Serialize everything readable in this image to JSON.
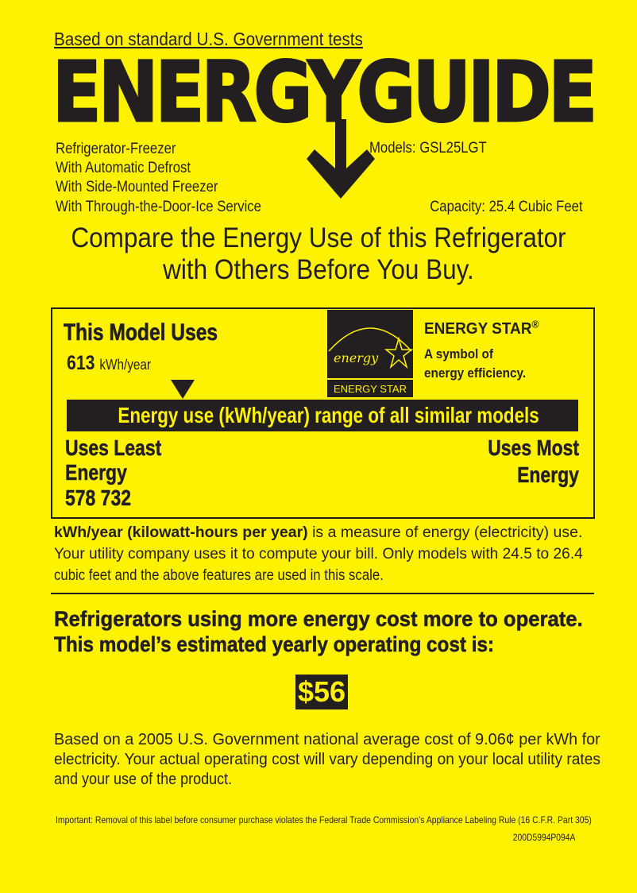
{
  "header": {
    "tests": "Based on standard U.S. Government tests",
    "logo": "ENERGYGUIDE"
  },
  "product": {
    "features": [
      "Refrigerator-Freezer",
      "With Automatic Defrost",
      "With Side-Mounted Freezer",
      "With Through-the-Door-Ice Service"
    ],
    "models": "Models:  GSL25LGT",
    "capacity": "Capacity: 25.4 Cubic Feet"
  },
  "compare": {
    "line1": "Compare the Energy Use of this Refrigerator",
    "line2": "with Others Before You Buy."
  },
  "usage": {
    "title": "This Model Uses",
    "value": "613",
    "unit": "kWh/year",
    "range_label": "Energy use (kWh/year) range of all similar models",
    "least_line1": "Uses Least",
    "least_line2": "Energy",
    "range_values": "578 732",
    "most_line1": "Uses Most",
    "most_line2": "Energy",
    "range_min": 578,
    "range_max": 732,
    "model_value": 613
  },
  "energy_star": {
    "logo_script": "energy",
    "logo_text": "ENERGY STAR",
    "title": "ENERGY STAR",
    "reg": "®",
    "sub1": "A symbol of",
    "sub2": "energy efficiency."
  },
  "explanation": {
    "bold": "kWh/year (kilowatt-hours per year)",
    "line1_rest": " is a measure of energy (electricity) use.",
    "line2": "Your utility company uses it to compute your bill. Only models with 24.5 to 26.4",
    "line3": "cubic feet and the above features are used in this scale."
  },
  "cost": {
    "heading1": "Refrigerators using more energy cost more to operate.",
    "heading2": "This model’s estimated yearly operating cost is:",
    "value": "$56",
    "note1": "Based on a 2005 U.S. Government national average cost of 9.06¢ per kWh for",
    "note2": "electricity. Your actual operating cost will vary depending on your local utility rates",
    "note3": "and your use of the product."
  },
  "footer": {
    "important": "Important: Removal of this label before consumer purchase violates the Federal Trade Commission’s Appliance Labeling Rule (16 C.F.R. Part 305)",
    "code": "200D5994P094A"
  },
  "colors": {
    "background": "#fff200",
    "ink": "#231f20"
  }
}
